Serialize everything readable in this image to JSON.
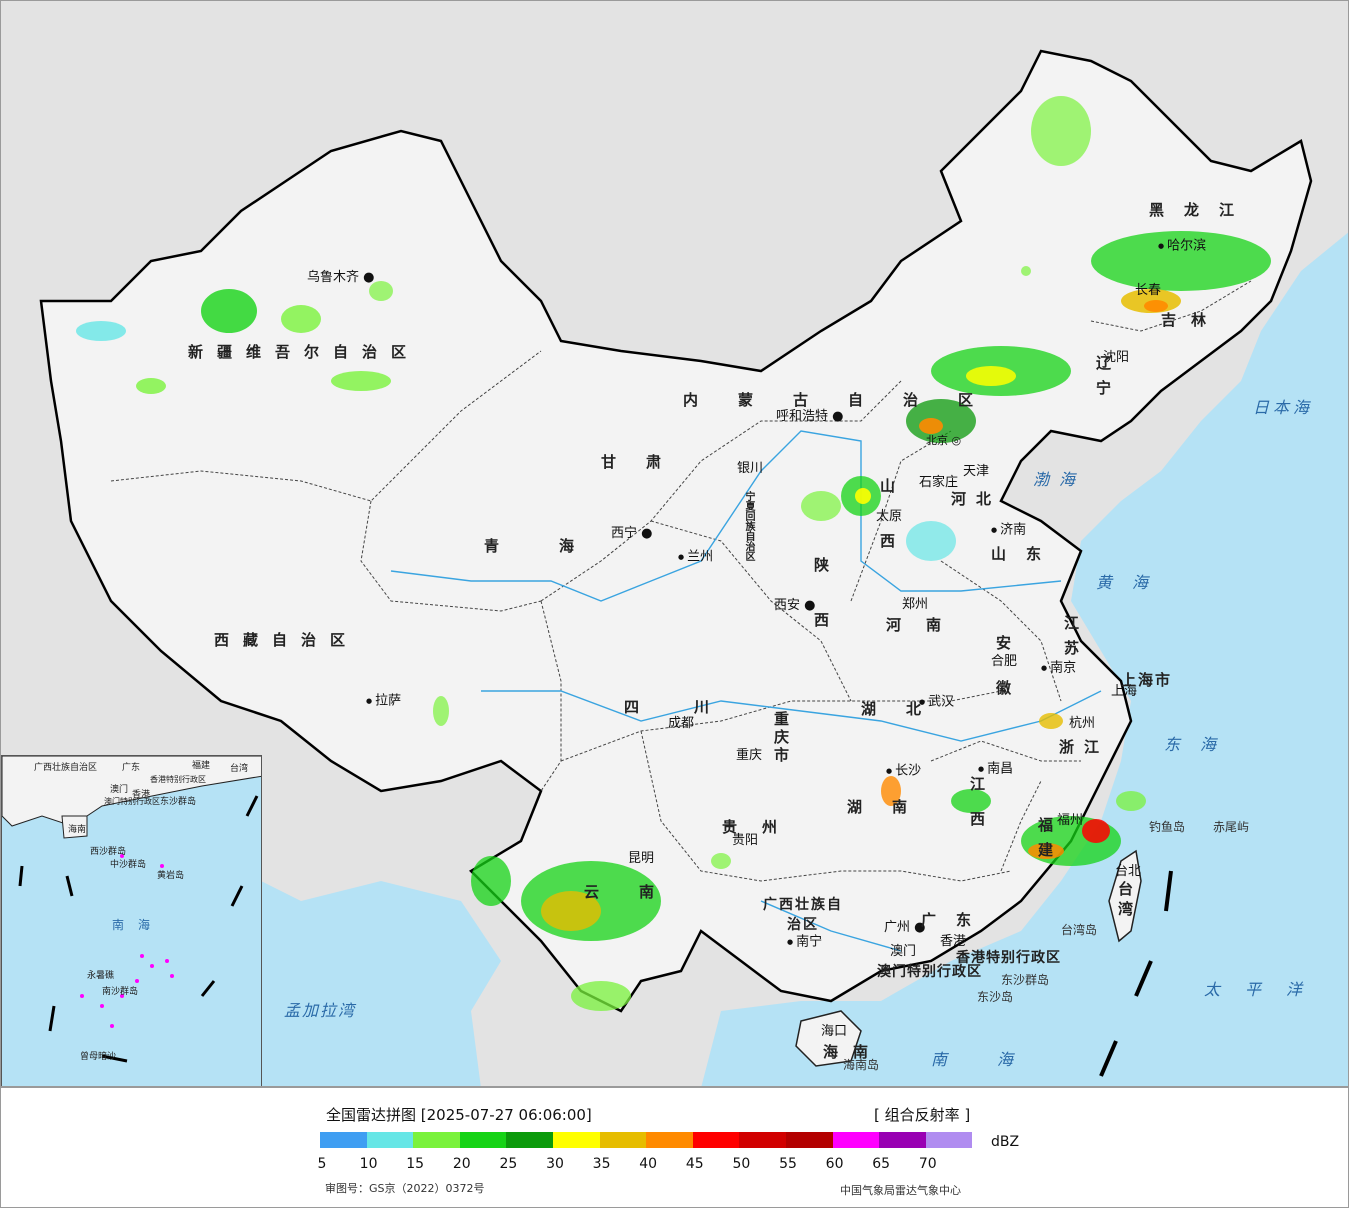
{
  "legend": {
    "title": "全国雷达拼图 [2025-07-27 06:06:00]",
    "product": "[ 组合反射率 ]",
    "unit": "dBZ",
    "review_number": "审图号：GS京（2022）0372号",
    "organization": "中国气象局雷达气象中心",
    "colors": [
      "#3f9ef2",
      "#66e6e6",
      "#7af23c",
      "#16d316",
      "#0b9a0b",
      "#ffff00",
      "#e6bd00",
      "#ff8a00",
      "#ff0000",
      "#d10000",
      "#b30000",
      "#ff00ff",
      "#9900b3",
      "#b08cf0"
    ],
    "ticks": [
      "5",
      "10",
      "15",
      "20",
      "25",
      "30",
      "35",
      "40",
      "45",
      "50",
      "55",
      "60",
      "65",
      "70"
    ]
  },
  "cities": [
    {
      "name": "乌鲁木齐"
    },
    {
      "name": "拉萨"
    },
    {
      "name": "西宁"
    },
    {
      "name": "兰州"
    },
    {
      "name": "银川"
    },
    {
      "name": "呼和浩特"
    },
    {
      "name": "北京"
    },
    {
      "name": "天津"
    },
    {
      "name": "石家庄"
    },
    {
      "name": "太原"
    },
    {
      "name": "济南"
    },
    {
      "name": "郑州"
    },
    {
      "name": "西安"
    },
    {
      "name": "成都"
    },
    {
      "name": "重庆"
    },
    {
      "name": "武汉"
    },
    {
      "name": "合肥"
    },
    {
      "name": "南京"
    },
    {
      "name": "上海"
    },
    {
      "name": "杭州"
    },
    {
      "name": "南昌"
    },
    {
      "name": "长沙"
    },
    {
      "name": "贵阳"
    },
    {
      "name": "昆明"
    },
    {
      "name": "南宁"
    },
    {
      "name": "广州"
    },
    {
      "name": "澳门"
    },
    {
      "name": "香港"
    },
    {
      "name": "福州"
    },
    {
      "name": "台北"
    },
    {
      "name": "海口"
    },
    {
      "name": "沈阳"
    },
    {
      "name": "长春"
    },
    {
      "name": "哈尔滨"
    }
  ],
  "provinces": {
    "xinjiang": "新疆维吾尔自治区",
    "xizang": "西藏自治区",
    "qinghai": "青海",
    "gansu": "甘肃",
    "neimenggu": "内蒙古自治区",
    "ningxia": "宁夏回族自治区",
    "sichuan": "四川",
    "yunnan": "云南",
    "guizhou": "贵州",
    "guangxi": "广西壮族自治区",
    "guangdong": "广东",
    "hunan": "湖南",
    "hubei": "湖北",
    "henan": "河南",
    "shaanxi": "陕西",
    "shanxi": "山西",
    "hebei": "河北",
    "shandong": "山东",
    "jiangsu": "江苏",
    "anhui": "安徽",
    "zhejiang": "浙江",
    "jiangxi": "江西",
    "fujian": "福建",
    "taiwan": "台湾",
    "hainan": "海南",
    "chongqing": "重庆市",
    "shanghai": "上海市",
    "liaoning": "辽宁",
    "jilin": "吉林",
    "heilongjiang": "黑龙江",
    "hk": "香港特别行政区",
    "macau": "澳门特别行政区"
  },
  "seas": {
    "bohai": "渤海",
    "huanghai": "黄海",
    "donghai": "东海",
    "nanhai": "南海",
    "taipingyang": "太平洋",
    "ribenhai": "日本海",
    "mengjiala": "孟加拉湾"
  },
  "islands": {
    "diaoyu": "钓鱼岛",
    "chiwei": "赤尾屿",
    "taiwan_island": "台湾岛",
    "dongsha_qundao": "东沙群岛",
    "dongsha_dao": "东沙岛",
    "hainan_island": "海南岛"
  },
  "inset": {
    "labels": [
      "广西壮族自治区",
      "广东",
      "福建",
      "台湾",
      "澳门",
      "香港",
      "香港特别行政区",
      "澳门特别行政区",
      "东沙群岛",
      "海南",
      "西沙群岛",
      "中沙群岛",
      "黄岩岛",
      "南海",
      "永暑礁",
      "南沙群岛",
      "曾母暗沙"
    ]
  }
}
